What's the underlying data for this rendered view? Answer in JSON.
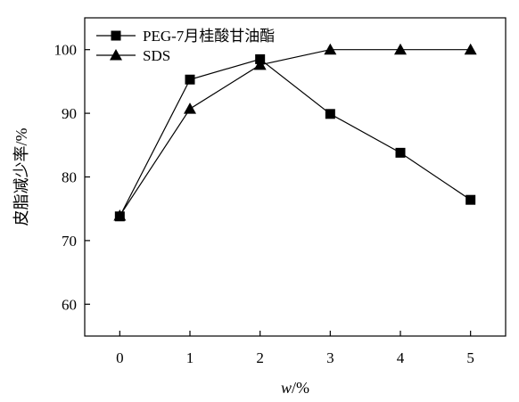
{
  "chart_data": {
    "type": "line",
    "x": [
      0,
      1,
      2,
      3,
      4,
      5
    ],
    "xlabel": "w/%",
    "ylabel": "皮脂减少率/%",
    "xlim": [
      -0.5,
      5.5
    ],
    "ylim": [
      55,
      105
    ],
    "xticks": [
      "0",
      "1",
      "2",
      "3",
      "4",
      "5"
    ],
    "yticks": [
      "60",
      "70",
      "80",
      "90",
      "100"
    ],
    "grid": false,
    "legend_position": "top-left",
    "series": [
      {
        "name": "PEG-7月桂酸甘油酯",
        "marker": "square",
        "values": [
          73.8,
          95.3,
          98.5,
          89.9,
          83.8,
          76.4
        ]
      },
      {
        "name": "SDS",
        "marker": "triangle",
        "values": [
          73.9,
          90.7,
          97.6,
          100,
          100,
          100
        ]
      }
    ],
    "colors": {
      "line": "#000000",
      "marker": "#000000"
    }
  }
}
